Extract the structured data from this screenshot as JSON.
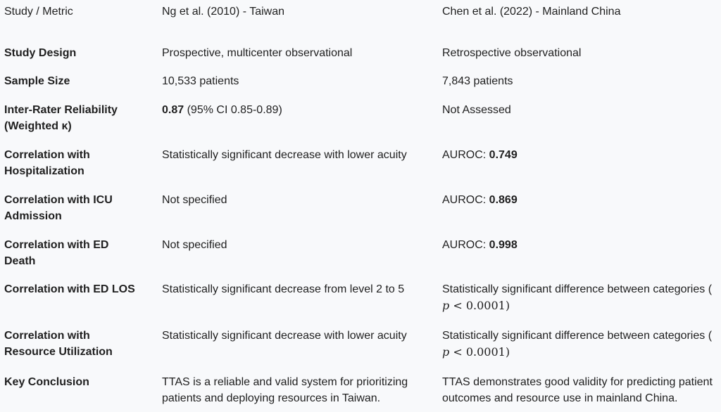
{
  "header": {
    "col0": "Study / Metric",
    "col1": "Ng et al. (2010) - Taiwan",
    "col2": "Chen et al. (2022) - Mainland China"
  },
  "rows": [
    {
      "metric": [
        "Study Design"
      ],
      "ng": [
        "Prospective, multicenter observational"
      ],
      "chen": [
        "Retrospective observational"
      ]
    },
    {
      "metric": [
        "Sample Size"
      ],
      "ng": [
        "10,533 patients"
      ],
      "chen": [
        "7,843 patients"
      ]
    },
    {
      "metric": [
        "Inter-Rater Reliability",
        "(Weighted κ)"
      ],
      "ng_bold": "0.87",
      "ng_rest": " (95% CI 0.85-0.89)",
      "chen": [
        "Not Assessed"
      ]
    },
    {
      "metric": [
        "Correlation with",
        "Hospitalization"
      ],
      "ng": [
        "Statistically significant decrease with lower acuity"
      ],
      "chen_prefix": "AUROC: ",
      "chen_bold": "0.749"
    },
    {
      "metric": [
        "Correlation with ICU",
        "Admission"
      ],
      "ng": [
        "Not specified"
      ],
      "chen_prefix": "AUROC: ",
      "chen_bold": "0.869"
    },
    {
      "metric": [
        "Correlation with ED",
        "Death"
      ],
      "ng": [
        "Not specified"
      ],
      "chen_prefix": "AUROC: ",
      "chen_bold": "0.998"
    },
    {
      "metric": [
        "Correlation with ED LOS"
      ],
      "ng": [
        "Statistically significant decrease from level 2 to 5"
      ],
      "chen_line1": "Statistically significant difference between categories (",
      "chen_math_var": "p",
      "chen_math_rest": " < 0.0001)"
    },
    {
      "metric": [
        "Correlation with",
        "Resource Utilization"
      ],
      "ng": [
        "Statistically significant decrease with lower acuity"
      ],
      "chen_line1": "Statistically significant difference between categories (",
      "chen_math_var": "p",
      "chen_math_rest": " < 0.0001)"
    },
    {
      "metric": [
        "Key Conclusion"
      ],
      "ng": [
        "TTAS is a reliable and valid system for prioritizing",
        "patients and deploying resources in Taiwan."
      ],
      "chen": [
        "TTAS demonstrates good validity for predicting patient",
        "outcomes and resource use in mainland China."
      ]
    }
  ]
}
